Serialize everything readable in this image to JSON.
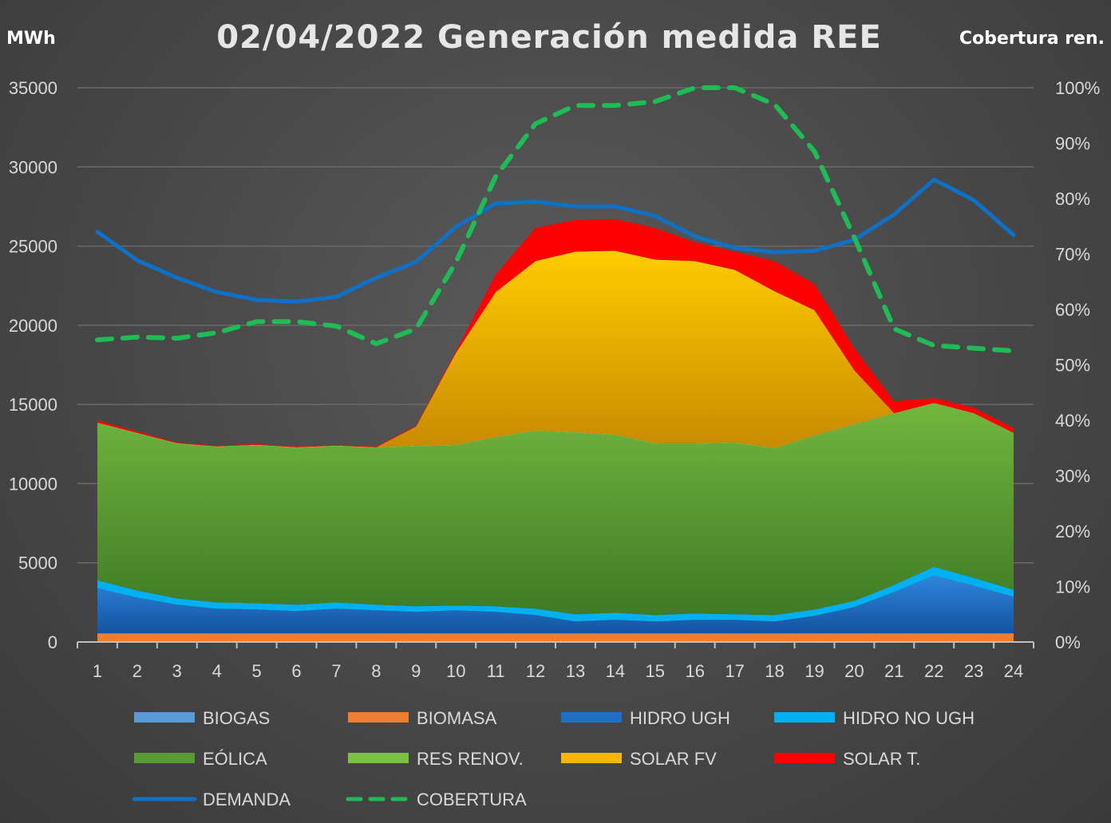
{
  "title": "02/04/2022 Generación medida REE",
  "left_unit": "MWh",
  "right_unit": "Cobertura ren.",
  "chart_data": {
    "type": "area",
    "x": [
      1,
      2,
      3,
      4,
      5,
      6,
      7,
      8,
      9,
      10,
      11,
      12,
      13,
      14,
      15,
      16,
      17,
      18,
      19,
      20,
      21,
      22,
      23,
      24
    ],
    "ylim": [
      0,
      35000
    ],
    "yticks": [
      0,
      5000,
      10000,
      15000,
      20000,
      25000,
      30000,
      35000
    ],
    "y2lim": [
      0,
      1.0
    ],
    "y2ticks": [
      "0%",
      "10%",
      "20%",
      "30%",
      "40%",
      "50%",
      "60%",
      "70%",
      "80%",
      "90%",
      "100%"
    ],
    "grid": true,
    "legend_position": "bottom",
    "stacked_series": [
      {
        "name": "BIOGAS",
        "color": "#5b9bd5",
        "values": [
          50,
          50,
          50,
          50,
          50,
          50,
          50,
          50,
          50,
          50,
          50,
          50,
          50,
          50,
          50,
          50,
          50,
          50,
          50,
          50,
          50,
          50,
          50,
          50
        ]
      },
      {
        "name": "BIOMASA",
        "color": "#ed7d31",
        "values": [
          500,
          500,
          500,
          500,
          500,
          500,
          500,
          500,
          500,
          500,
          500,
          500,
          500,
          500,
          500,
          500,
          500,
          500,
          500,
          500,
          500,
          500,
          500,
          500
        ]
      },
      {
        "name": "HIDRO UGH",
        "color": "#1f6fc5",
        "values": [
          2850,
          2250,
          1800,
          1550,
          1500,
          1400,
          1550,
          1450,
          1350,
          1450,
          1350,
          1150,
          750,
          850,
          750,
          850,
          850,
          750,
          1100,
          1650,
          2600,
          3650,
          3000,
          2300
        ]
      },
      {
        "name": "HIDRO NO UGH",
        "color": "#00b0f0",
        "values": [
          500,
          450,
          400,
          400,
          400,
          400,
          400,
          350,
          350,
          300,
          350,
          400,
          450,
          450,
          400,
          400,
          350,
          400,
          400,
          400,
          450,
          550,
          500,
          450
        ]
      },
      {
        "name": "EÓLICA",
        "color": "#5a9a35",
        "values": [
          9900,
          9900,
          9750,
          9800,
          9950,
          9900,
          9850,
          9900,
          10100,
          10100,
          10650,
          11200,
          11450,
          11200,
          10800,
          10700,
          10800,
          10500,
          10950,
          11100,
          10800,
          10300,
          10350,
          9850
        ]
      },
      {
        "name": "RES RENOV.",
        "color": "#7cc242",
        "values": [
          50,
          50,
          50,
          50,
          50,
          50,
          50,
          50,
          50,
          50,
          50,
          50,
          50,
          50,
          50,
          50,
          50,
          50,
          50,
          50,
          50,
          50,
          50,
          50
        ]
      },
      {
        "name": "SOLAR FV",
        "color": "#f5b800",
        "values": [
          0,
          0,
          0,
          0,
          0,
          0,
          0,
          0,
          1200,
          5800,
          9150,
          10700,
          11400,
          11600,
          11600,
          11500,
          10900,
          9900,
          7900,
          3400,
          0,
          0,
          0,
          0
        ]
      },
      {
        "name": "SOLAR T.",
        "color": "#ff0000",
        "values": [
          150,
          100,
          50,
          50,
          50,
          50,
          50,
          50,
          50,
          100,
          1100,
          2100,
          2000,
          2000,
          2000,
          1200,
          1150,
          1900,
          1650,
          1400,
          750,
          300,
          350,
          300
        ]
      }
    ],
    "line_series": [
      {
        "name": "DEMANDA",
        "color": "#0f70c8",
        "axis": "left",
        "values": [
          25900,
          24100,
          23000,
          22100,
          21600,
          21500,
          21800,
          23000,
          24000,
          26200,
          27700,
          27800,
          27500,
          27500,
          26900,
          25600,
          24900,
          24600,
          24700,
          25400,
          27000,
          29200,
          27900,
          25700
        ]
      },
      {
        "name": "COBERTURA",
        "color": "#1fbb55",
        "axis": "right",
        "style": "dashed",
        "values": [
          0.545,
          0.55,
          0.548,
          0.558,
          0.578,
          0.578,
          0.57,
          0.538,
          0.565,
          0.685,
          0.84,
          0.935,
          0.968,
          0.968,
          0.975,
          1.0,
          1.0,
          0.97,
          0.885,
          0.73,
          0.565,
          0.535,
          0.53,
          0.525
        ]
      }
    ],
    "legend": [
      {
        "label": "BIOGAS",
        "type": "area",
        "color": "#5b9bd5"
      },
      {
        "label": "BIOMASA",
        "type": "area",
        "color": "#ed7d31"
      },
      {
        "label": "HIDRO UGH",
        "type": "area",
        "color": "#1f6fc5"
      },
      {
        "label": "HIDRO NO UGH",
        "type": "area",
        "color": "#00b0f0"
      },
      {
        "label": "EÓLICA",
        "type": "area",
        "color": "#5a9a35"
      },
      {
        "label": "RES RENOV.",
        "type": "area",
        "color": "#7cc242"
      },
      {
        "label": "SOLAR FV",
        "type": "area",
        "color": "#f5b800"
      },
      {
        "label": "SOLAR T.",
        "type": "area",
        "color": "#ff0000"
      },
      {
        "label": "DEMANDA",
        "type": "line",
        "color": "#0f70c8"
      },
      {
        "label": "COBERTURA",
        "type": "dashed",
        "color": "#1fbb55"
      }
    ]
  }
}
